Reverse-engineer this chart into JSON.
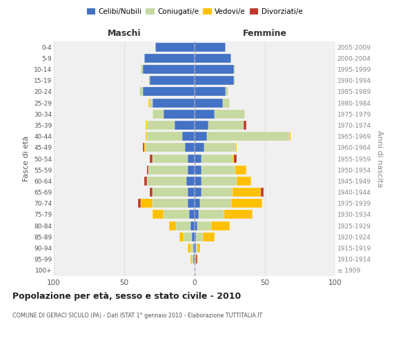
{
  "age_groups": [
    "100+",
    "95-99",
    "90-94",
    "85-89",
    "80-84",
    "75-79",
    "70-74",
    "65-69",
    "60-64",
    "55-59",
    "50-54",
    "45-49",
    "40-44",
    "35-39",
    "30-34",
    "25-29",
    "20-24",
    "15-19",
    "10-14",
    "5-9",
    "0-4"
  ],
  "birth_years": [
    "≤ 1909",
    "1910-1914",
    "1915-1919",
    "1920-1924",
    "1925-1929",
    "1930-1934",
    "1935-1939",
    "1940-1944",
    "1945-1949",
    "1950-1954",
    "1955-1959",
    "1960-1964",
    "1965-1969",
    "1970-1974",
    "1975-1979",
    "1980-1984",
    "1985-1989",
    "1990-1994",
    "1995-1999",
    "2000-2004",
    "2005-2009"
  ],
  "maschi": {
    "celibi": [
      0,
      1,
      1,
      2,
      3,
      4,
      5,
      5,
      6,
      5,
      5,
      7,
      9,
      14,
      22,
      30,
      37,
      32,
      37,
      36,
      28
    ],
    "coniugati": [
      0,
      1,
      2,
      6,
      10,
      18,
      25,
      25,
      28,
      28,
      25,
      28,
      25,
      20,
      8,
      2,
      2,
      1,
      1,
      0,
      0
    ],
    "vedovi": [
      0,
      1,
      2,
      3,
      5,
      8,
      8,
      0,
      0,
      0,
      0,
      1,
      1,
      1,
      0,
      1,
      0,
      0,
      0,
      0,
      0
    ],
    "divorziati": [
      0,
      0,
      0,
      0,
      0,
      0,
      2,
      2,
      2,
      1,
      2,
      1,
      0,
      0,
      0,
      0,
      0,
      0,
      0,
      0,
      0
    ]
  },
  "femmine": {
    "nubili": [
      0,
      0,
      1,
      1,
      2,
      3,
      4,
      5,
      5,
      5,
      5,
      7,
      9,
      10,
      14,
      20,
      22,
      28,
      28,
      26,
      22
    ],
    "coniugate": [
      0,
      0,
      1,
      5,
      10,
      18,
      22,
      22,
      25,
      24,
      22,
      22,
      58,
      25,
      22,
      5,
      2,
      1,
      1,
      0,
      0
    ],
    "vedove": [
      0,
      1,
      2,
      8,
      13,
      20,
      22,
      20,
      10,
      8,
      1,
      1,
      1,
      0,
      0,
      0,
      0,
      0,
      0,
      0,
      0
    ],
    "divorziate": [
      0,
      1,
      0,
      0,
      0,
      0,
      0,
      2,
      0,
      0,
      2,
      0,
      0,
      2,
      0,
      0,
      0,
      0,
      0,
      0,
      0
    ]
  },
  "colors": {
    "celibi": "#4472c4",
    "coniugati": "#c5d9a0",
    "vedovi": "#ffc000",
    "divorziati": "#c0392b"
  },
  "xlim": [
    -100,
    100
  ],
  "xticks": [
    -100,
    -50,
    0,
    50,
    100
  ],
  "xticklabels": [
    "100",
    "50",
    "0",
    "50",
    "100"
  ],
  "title": "Popolazione per età, sesso e stato civile - 2010",
  "subtitle": "COMUNE DI GERACI SICULO (PA) - Dati ISTAT 1° gennaio 2010 - Elaborazione TUTTITALIA.IT",
  "ylabel_left": "Fasce di età",
  "ylabel_right": "Anni di nascita",
  "label_maschi": "Maschi",
  "label_femmine": "Femmine",
  "legend_labels": [
    "Celibi/Nubili",
    "Coniugati/e",
    "Vedovi/e",
    "Divorziati/e"
  ],
  "background_color": "#f0f0f0",
  "bar_height": 0.8
}
